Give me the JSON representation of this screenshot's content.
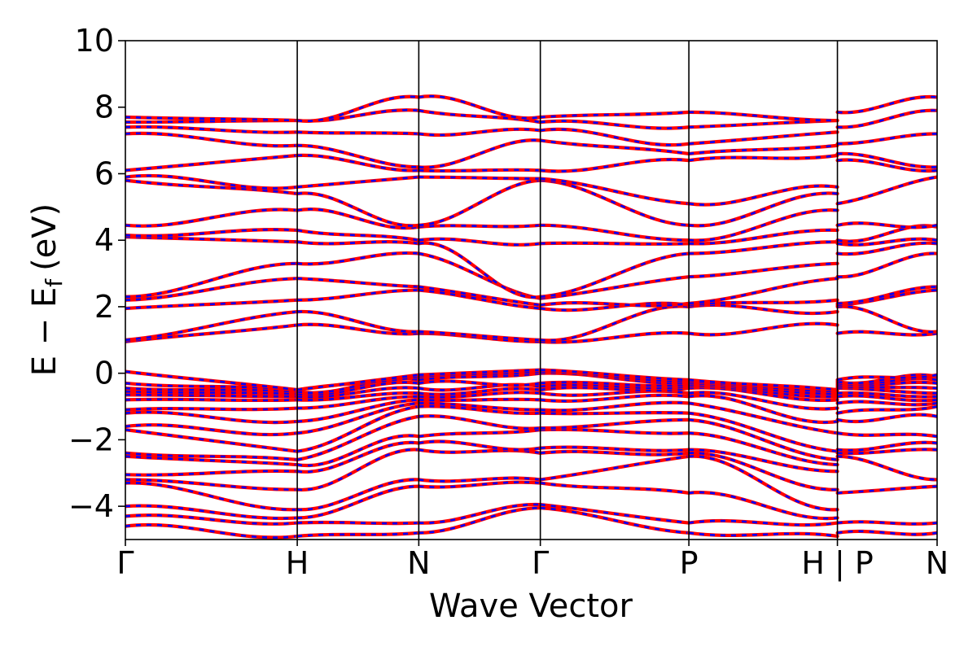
{
  "chart_data": {
    "type": "line",
    "xlabel": "Wave Vector",
    "ylabel_main": "E − E",
    "ylabel_sub": "f",
    "ylabel_unit": "(eV)",
    "ylim": [
      -5,
      10
    ],
    "yticks": [
      -4,
      -2,
      0,
      2,
      4,
      6,
      8,
      10
    ],
    "ytick_labels": [
      "−4",
      "−2",
      "0",
      "2",
      "4",
      "6",
      "8",
      "10"
    ],
    "grid": false,
    "legend": "none",
    "xlim": [
      0,
      6.612
    ],
    "kpoints": [
      {
        "label": "Γ",
        "x": 0.0
      },
      {
        "label": "H",
        "x": 1.4
      },
      {
        "label": "N",
        "x": 2.39
      },
      {
        "label": "Γ",
        "x": 3.38
      },
      {
        "label": "P",
        "x": 4.59
      },
      {
        "label": "H | P",
        "x": 5.8
      },
      {
        "label": "N",
        "x": 6.612
      }
    ],
    "segments": [
      {
        "x0": 0.0,
        "x1": 1.4,
        "start": [
          -4.6,
          -4.3,
          -4.0,
          -3.3,
          -3.2,
          -3.05,
          -2.5,
          -2.4,
          -1.7,
          -1.6,
          -1.2,
          -1.1,
          -0.8,
          -0.65,
          -0.55,
          -0.45,
          -0.3,
          0.05,
          0.95,
          1.0,
          1.95,
          2.2,
          2.3,
          4.1,
          4.15,
          4.45,
          5.8,
          5.9,
          6.1,
          7.2,
          7.4,
          7.55,
          7.7
        ],
        "end": [
          -4.9,
          -4.5,
          -4.35,
          -4.1,
          -3.5,
          -2.95,
          -2.75,
          -2.6,
          -2.35,
          -1.8,
          -1.45,
          -1.05,
          -0.8,
          -0.7,
          -0.62,
          -0.55,
          -0.5,
          -0.5,
          1.45,
          1.85,
          2.2,
          2.85,
          3.3,
          3.95,
          4.3,
          4.9,
          5.4,
          5.6,
          6.55,
          6.85,
          7.25,
          7.6,
          7.6
        ]
      },
      {
        "x0": 1.4,
        "x1": 2.39,
        "start": [
          -4.9,
          -4.5,
          -4.35,
          -4.1,
          -3.5,
          -2.95,
          -2.75,
          -2.6,
          -2.35,
          -1.8,
          -1.45,
          -1.05,
          -0.8,
          -0.7,
          -0.62,
          -0.55,
          -0.5,
          -0.5,
          1.45,
          1.85,
          2.2,
          2.85,
          3.3,
          3.95,
          4.3,
          4.9,
          5.4,
          5.6,
          6.55,
          6.85,
          7.25,
          7.6,
          7.6
        ],
        "end": [
          -4.8,
          -4.5,
          -3.4,
          -3.2,
          -2.3,
          -2.1,
          -1.9,
          -1.3,
          -1.0,
          -0.9,
          -0.8,
          -0.7,
          -0.6,
          -0.45,
          -0.3,
          -0.2,
          -0.1,
          -0.05,
          1.2,
          1.25,
          2.5,
          2.6,
          3.6,
          3.9,
          4.0,
          4.4,
          4.45,
          5.9,
          6.1,
          6.2,
          7.2,
          7.9,
          8.3
        ]
      },
      {
        "x0": 2.39,
        "x1": 3.38,
        "start": [
          -4.8,
          -4.5,
          -3.4,
          -3.2,
          -2.3,
          -2.1,
          -1.9,
          -1.3,
          -1.0,
          -0.9,
          -0.8,
          -0.7,
          -0.6,
          -0.45,
          -0.3,
          -0.2,
          -0.1,
          -0.05,
          1.2,
          1.25,
          2.5,
          2.6,
          3.6,
          3.9,
          4.0,
          4.4,
          4.45,
          5.9,
          6.1,
          6.2,
          7.2,
          7.9,
          8.3
        ],
        "end": [
          -4.05,
          -3.95,
          -3.3,
          -3.2,
          -2.4,
          -2.25,
          -1.7,
          -1.65,
          -1.2,
          -1.1,
          -0.8,
          -0.6,
          -0.5,
          -0.4,
          -0.3,
          0.0,
          0.05,
          0.1,
          0.95,
          1.0,
          1.95,
          2.05,
          2.25,
          2.3,
          3.9,
          4.45,
          5.8,
          5.85,
          6.1,
          7.0,
          7.3,
          7.55,
          7.7
        ]
      },
      {
        "x0": 3.38,
        "x1": 4.59,
        "start": [
          -4.05,
          -3.95,
          -3.3,
          -3.2,
          -2.4,
          -2.25,
          -1.7,
          -1.65,
          -1.2,
          -1.1,
          -0.8,
          -0.6,
          -0.5,
          -0.4,
          -0.3,
          0.0,
          0.05,
          0.1,
          0.95,
          1.0,
          1.95,
          2.05,
          2.25,
          2.3,
          3.9,
          4.45,
          5.8,
          5.85,
          6.1,
          7.0,
          7.3,
          7.55,
          7.7
        ],
        "end": [
          -4.8,
          -4.5,
          -3.6,
          -2.5,
          -2.4,
          -2.3,
          -1.8,
          -1.4,
          -1.2,
          -0.9,
          -0.7,
          -0.6,
          -0.45,
          -0.4,
          -0.35,
          -0.3,
          -0.25,
          -0.2,
          1.2,
          2.0,
          2.05,
          2.1,
          2.9,
          3.6,
          3.9,
          4.0,
          4.45,
          5.1,
          6.4,
          6.6,
          6.9,
          7.4,
          7.85
        ]
      },
      {
        "x0": 4.59,
        "x1": 5.8,
        "start": [
          -4.8,
          -4.5,
          -3.6,
          -2.5,
          -2.4,
          -2.3,
          -1.8,
          -1.4,
          -1.2,
          -0.9,
          -0.7,
          -0.6,
          -0.45,
          -0.4,
          -0.35,
          -0.3,
          -0.25,
          -0.2,
          1.2,
          2.0,
          2.05,
          2.1,
          2.9,
          3.6,
          3.9,
          4.0,
          4.45,
          5.1,
          6.4,
          6.6,
          6.9,
          7.4,
          7.85
        ],
        "end": [
          -4.9,
          -4.5,
          -4.35,
          -4.1,
          -3.5,
          -2.95,
          -2.75,
          -2.6,
          -2.35,
          -1.8,
          -1.45,
          -1.05,
          -0.8,
          -0.7,
          -0.62,
          -0.55,
          -0.5,
          -0.5,
          1.45,
          1.85,
          2.2,
          2.85,
          3.3,
          3.95,
          4.3,
          4.9,
          5.4,
          5.6,
          6.55,
          6.85,
          7.25,
          7.6,
          7.6
        ]
      },
      {
        "x0": 5.8,
        "x1": 6.612,
        "start": [
          -4.8,
          -4.5,
          -3.6,
          -2.5,
          -2.4,
          -2.3,
          -1.8,
          -1.4,
          -1.2,
          -0.9,
          -0.7,
          -0.6,
          -0.45,
          -0.4,
          -0.35,
          -0.3,
          -0.25,
          -0.2,
          1.2,
          2.0,
          2.05,
          2.1,
          2.9,
          3.6,
          3.9,
          4.0,
          4.45,
          5.1,
          6.4,
          6.6,
          6.9,
          7.4,
          7.85
        ],
        "end": [
          -4.8,
          -4.5,
          -3.4,
          -3.2,
          -2.3,
          -2.1,
          -1.9,
          -1.3,
          -1.0,
          -0.9,
          -0.8,
          -0.7,
          -0.6,
          -0.45,
          -0.3,
          -0.2,
          -0.1,
          -0.05,
          1.2,
          1.25,
          2.5,
          2.6,
          3.6,
          3.9,
          4.0,
          4.4,
          4.45,
          5.9,
          6.1,
          6.2,
          7.2,
          7.9,
          8.3
        ]
      }
    ],
    "series_colors": {
      "spin_up": "#ff0000",
      "spin_down": "#0000ff"
    }
  }
}
